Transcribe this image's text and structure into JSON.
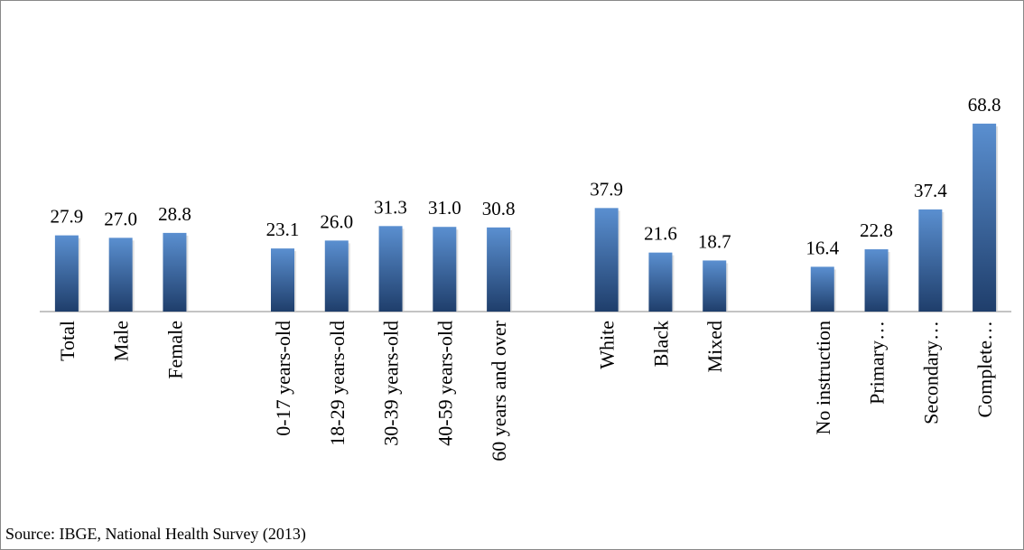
{
  "chart_data": {
    "type": "bar",
    "categories": [
      "Total",
      "Male",
      "Female",
      null,
      "0-17 years-old",
      "18-29 years-old",
      "30-39 years-old",
      "40-59 years-old",
      "60 years and over",
      null,
      "White",
      "Black",
      "Mixed",
      null,
      "No instruction",
      "Primary…",
      "Secondary…",
      "Complete…"
    ],
    "values": [
      27.9,
      27.0,
      28.8,
      null,
      23.1,
      26.0,
      31.3,
      31.0,
      30.8,
      null,
      37.9,
      21.6,
      18.7,
      null,
      16.4,
      22.8,
      37.4,
      68.8
    ],
    "value_labels": [
      "27.9",
      "27.0",
      "28.8",
      null,
      "23.1",
      "26.0",
      "31.3",
      "31.0",
      "30.8",
      null,
      "37.9",
      "21.6",
      "18.7",
      null,
      "16.4",
      "22.8",
      "37.4",
      "68.8"
    ],
    "color": "#3d6faf",
    "ylim": [
      0,
      80
    ],
    "source": "Source: IBGE, National Health Survey (2013)"
  }
}
